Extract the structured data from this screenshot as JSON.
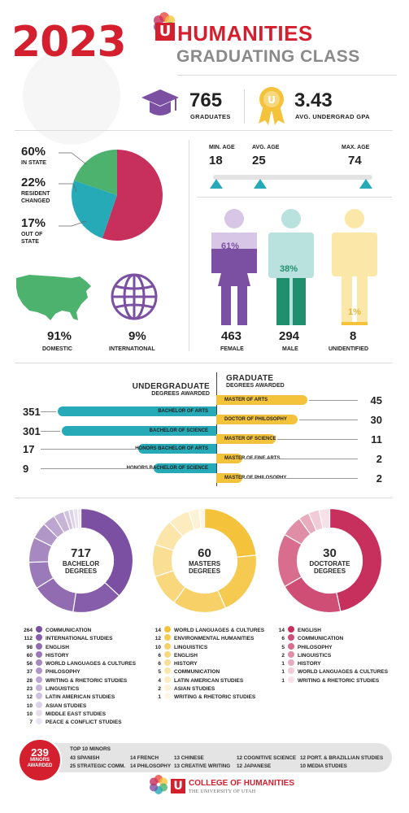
{
  "header": {
    "year": "2023",
    "title": "HUMANITIES",
    "subtitle": "GRADUATING CLASS"
  },
  "stats": {
    "graduates_value": "765",
    "graduates_label": "GRADUATES",
    "gpa_value": "3.43",
    "gpa_label": "AVG. UNDERGRAD GPA"
  },
  "residency": {
    "in_state_pct": "60%",
    "in_state_label": "IN STATE",
    "resident_pct": "22%",
    "resident_label_1": "RESIDENT",
    "resident_label_2": "CHANGED",
    "out_pct": "17%",
    "out_label_1": "OUT OF",
    "out_label_2": "STATE",
    "domestic_pct": "91%",
    "domestic_label": "DOMESTIC",
    "intl_pct": "9%",
    "intl_label": "INTERNATIONAL"
  },
  "ages": {
    "min_label": "MIN. AGE",
    "min_value": "18",
    "avg_label": "AVG. AGE",
    "avg_value": "25",
    "max_label": "MAX. AGE",
    "max_value": "74"
  },
  "gender": {
    "female_pct": "61%",
    "female_count": "463",
    "female_label": "FEMALE",
    "male_pct": "38%",
    "male_count": "294",
    "male_label": "MALE",
    "unid_pct": "1%",
    "unid_count": "8",
    "unid_label": "UNIDENTIFIED"
  },
  "degrees": {
    "ug_title_1": "UNDERGRADUATE",
    "ug_title_2": "DEGREES AWARDED",
    "g_title_1": "GRADUATE",
    "g_title_2": "DEGREES AWARDED",
    "undergrad": [
      {
        "label": "BACHELOR OF ARTS",
        "value": "351"
      },
      {
        "label": "BACHELOR OF SCIENCE",
        "value": "301"
      },
      {
        "label": "HONORS BACHELOR OF ARTS",
        "value": "17"
      },
      {
        "label": "HONORS BACHELOR OF SCIENCE",
        "value": "9"
      }
    ],
    "grad": [
      {
        "label": "MASTER OF ARTS",
        "value": "45"
      },
      {
        "label": "DOCTOR OF PHILOSOPHY",
        "value": "30"
      },
      {
        "label": "MASTER OF SCIENCE",
        "value": "11"
      },
      {
        "label": "MASTER OF FINE ARTS",
        "value": "2"
      },
      {
        "label": "MASTER OF PHILOSOPHY",
        "value": "2"
      }
    ]
  },
  "donuts": {
    "bachelor": {
      "value": "717",
      "label_1": "BACHELOR",
      "label_2": "DEGREES"
    },
    "masters": {
      "value": "60",
      "label_1": "MASTERS",
      "label_2": "DEGREES"
    },
    "doctorate": {
      "value": "30",
      "label_1": "DOCTORATE",
      "label_2": "DEGREES"
    }
  },
  "legend": {
    "bachelor": [
      {
        "n": "264",
        "label": "COMMUNICATION"
      },
      {
        "n": "112",
        "label": "INTERNATIONAL STUDIES"
      },
      {
        "n": "98",
        "label": "ENGLISH"
      },
      {
        "n": "60",
        "label": "HISTORY"
      },
      {
        "n": "56",
        "label": "WORLD LANGUAGES & CULTURES"
      },
      {
        "n": "37",
        "label": "PHILOSOPHY"
      },
      {
        "n": "28",
        "label": "WRITING & RHETORIC STUDIES"
      },
      {
        "n": "23",
        "label": "LINGUISTICS"
      },
      {
        "n": "12",
        "label": "LATIN AMERICAN STUDIES"
      },
      {
        "n": "10",
        "label": "ASIAN STUDIES"
      },
      {
        "n": "10",
        "label": "MIDDLE EAST STUDIES"
      },
      {
        "n": "7",
        "label": "PEACE & CONFLICT STUDIES"
      }
    ],
    "masters": [
      {
        "n": "14",
        "label": "WORLD LANGUAGES & CULTURES"
      },
      {
        "n": "12",
        "label": "ENVIRONMENTAL HUMANITIES"
      },
      {
        "n": "10",
        "label": "LINGUISTICS"
      },
      {
        "n": "6",
        "label": "ENGLISH"
      },
      {
        "n": "6",
        "label": "HISTORY"
      },
      {
        "n": "5",
        "label": "COMMUNICATION"
      },
      {
        "n": "4",
        "label": "LATIN AMERICAN STUDIES"
      },
      {
        "n": "2",
        "label": "ASIAN STUDIES"
      },
      {
        "n": "1",
        "label": "WRITING & RHETORIC STUDIES"
      }
    ],
    "doctorate": [
      {
        "n": "14",
        "label": "ENGLISH"
      },
      {
        "n": "6",
        "label": "COMMUNICATION"
      },
      {
        "n": "5",
        "label": "PHILOSOPHY"
      },
      {
        "n": "2",
        "label": "LINGUISTICS"
      },
      {
        "n": "1",
        "label": "HISTORY"
      },
      {
        "n": "1",
        "label": "WORLD LANGUAGES & CULTURES"
      },
      {
        "n": "1",
        "label": "WRITING & RHETORIC STUDIES"
      }
    ]
  },
  "minors": {
    "count": "239",
    "label_1": "MINORS",
    "label_2": "AWARDED",
    "title": "TOP 10 MINORS",
    "items": [
      "43 SPANISH",
      "14 FRENCH",
      "13 CHINESE",
      "12 COGNITIVE SCIENCE",
      "12 PORT. & BRAZILLIAN STUDIES",
      "25 STRATEGIC COMM.",
      "14 PHILOSOPHY",
      "13 CREATIVE WRITING",
      "12 JAPANESE",
      "10 MEDIA STUDIES"
    ]
  },
  "footer": {
    "line_1": "COLLEGE OF HUMANITIES",
    "line_2": "THE UNIVERSITY OF UTAH"
  },
  "colors": {
    "red": "#d4202e",
    "purple": "#7b4fa2",
    "teal": "#26aab7",
    "yellow": "#f5c33b",
    "crimson": "#c72f5d",
    "green": "#4cb26d",
    "gray": "#8a8a8a"
  }
}
